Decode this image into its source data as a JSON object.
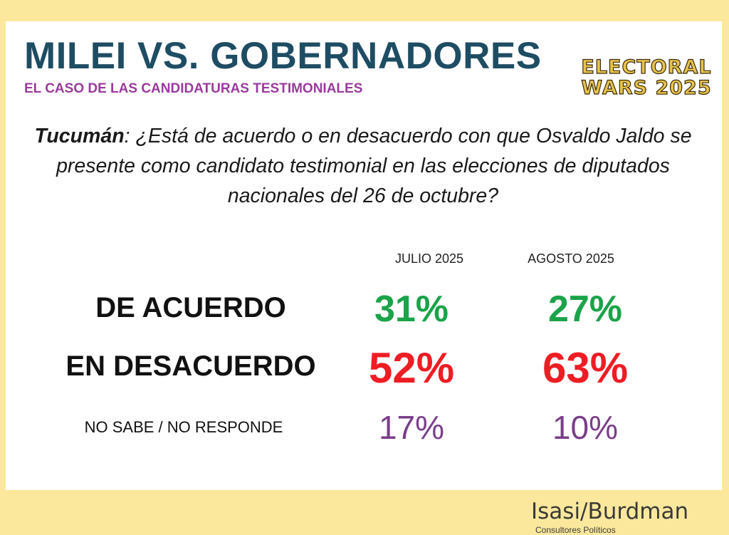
{
  "header": {
    "title": "MILEI VS. GOBERNADORES",
    "subtitle": "EL CASO DE LAS CANDIDATURAS TESTIMONIALES",
    "badge": [
      "ELECTORAL",
      "WARS 2025"
    ]
  },
  "question": {
    "place": "Tucumán",
    "text": ": ¿Está de acuerdo o en desacuerdo con que Osvaldo Jaldo se presente como candidato testimonial en las elecciones de diputados nacionales del 26 de octubre?"
  },
  "table": {
    "columns": [
      "JULIO 2025",
      "AGOSTO 2025"
    ],
    "rows": [
      {
        "label": "DE ACUERDO",
        "values": [
          "31%",
          "27%"
        ]
      },
      {
        "label": "EN DESACUERDO",
        "values": [
          "52%",
          "63%"
        ]
      },
      {
        "label": "NO SABE / NO RESPONDE",
        "values": [
          "17%",
          "10%"
        ]
      }
    ]
  },
  "footer": {
    "brand": "Isasi/Burdman",
    "tagline": "Consultores Políticos"
  }
}
